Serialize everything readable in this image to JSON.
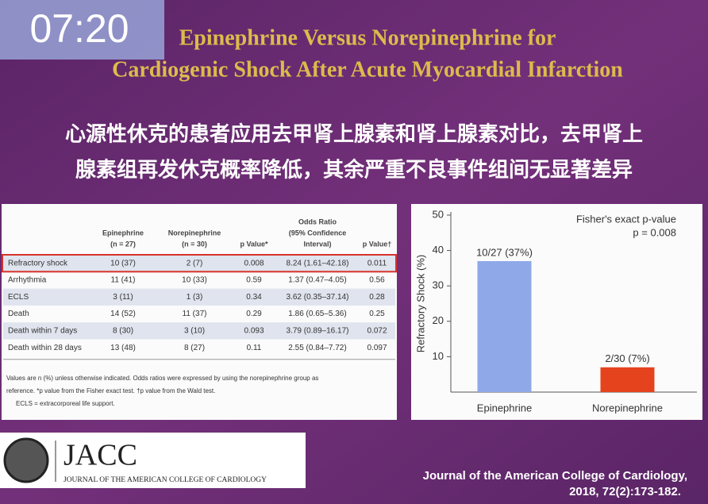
{
  "overlay_time": "07:20",
  "title": [
    "Epinephrine Versus Norepinephrine for",
    "Cardiogenic Shock After Acute Myocardial Infarction"
  ],
  "subtitle": [
    "心源性休克的患者应用去甲肾上腺素和肾上腺素对比，去甲肾上",
    "腺素组再发休克概率降低，其余严重不良事件组间无显著差异"
  ],
  "table": {
    "headers": [
      [
        "Epinephrine",
        "(n = 27)"
      ],
      [
        "Norepinephrine",
        "(n = 30)"
      ],
      [
        "p Value*"
      ],
      [
        "Odds Ratio",
        "(95% Confidence",
        "Interval)"
      ],
      [
        "p Value†"
      ]
    ],
    "rows": [
      [
        "Refractory shock",
        "10 (37)",
        "2 (7)",
        "0.008",
        "8.24 (1.61–42.18)",
        "0.011"
      ],
      [
        "Arrhythmia",
        "11 (41)",
        "10 (33)",
        "0.59",
        "1.37 (0.47–4.05)",
        "0.56"
      ],
      [
        "ECLS",
        "3 (11)",
        "1 (3)",
        "0.34",
        "3.62 (0.35–37.14)",
        "0.28"
      ],
      [
        "Death",
        "14 (52)",
        "11 (37)",
        "0.29",
        "1.86 (0.65–5.36)",
        "0.25"
      ],
      [
        "Death within 7 days",
        "8 (30)",
        "3 (10)",
        "0.093",
        "3.79 (0.89–16.17)",
        "0.072"
      ],
      [
        "Death within 28 days",
        "13 (48)",
        "8 (27)",
        "0.11",
        "2.55 (0.84–7.72)",
        "0.097"
      ]
    ],
    "notes": [
      "Values are n (%) unless otherwise indicated. Odds ratios were expressed by using the norepinephrine group as",
      "reference. *p value from the Fisher exact test. †p value from the Wald test.",
      "ECLS = extracorporeal life support."
    ]
  },
  "chart_data": {
    "type": "bar",
    "ylabel": "Refractory Shock (%)",
    "annotation": [
      "Fisher's exact p-value",
      "p = 0.008"
    ],
    "categories": [
      "Epinephrine",
      "Norepinephrine"
    ],
    "values": [
      37,
      7
    ],
    "value_labels": [
      "10/27 (37%)",
      "2/30 (7%)"
    ],
    "colors": [
      "#8fa9e8",
      "#e5431e"
    ],
    "ylim": [
      0,
      50
    ],
    "yticks": [
      10,
      20,
      30,
      40,
      50
    ]
  },
  "logo": {
    "name": "JACC",
    "full_name": "JOURNAL OF THE AMERICAN COLLEGE OF CARDIOLOGY"
  },
  "citation": [
    "Journal of the American College of Cardiology,",
    "2018, 72(2):173-182."
  ]
}
